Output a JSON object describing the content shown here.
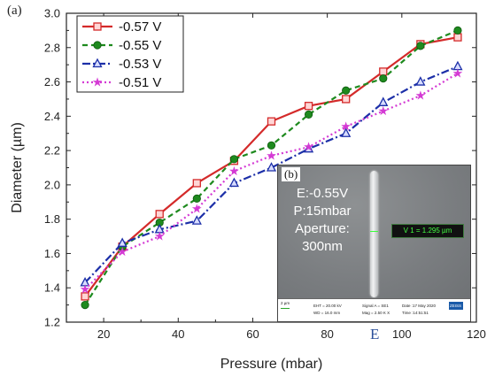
{
  "panel_a_label": "(a)",
  "panel_b_label": "(b)",
  "bottom_mark": "E",
  "chart_data": {
    "type": "line",
    "title": "",
    "xlabel": "Pressure (mbar)",
    "ylabel": "Diameter (µm)",
    "xlim": [
      10,
      120
    ],
    "ylim": [
      1.2,
      3.0
    ],
    "x_ticks": [
      "20",
      "40",
      "60",
      "80",
      "100",
      "120"
    ],
    "y_ticks": [
      "1.2",
      "1.4",
      "1.6",
      "1.8",
      "2.0",
      "2.2",
      "2.4",
      "2.6",
      "2.8",
      "3.0"
    ],
    "x": [
      15,
      25,
      35,
      45,
      55,
      65,
      75,
      85,
      95,
      105,
      115
    ],
    "legend_position": "top-left",
    "grid": false,
    "series": [
      {
        "name": "-0.57 V",
        "color": "#d42a2a",
        "dash": "solid",
        "marker": "square",
        "values": [
          1.35,
          1.64,
          1.83,
          2.01,
          2.14,
          2.37,
          2.46,
          2.5,
          2.66,
          2.82,
          2.86
        ]
      },
      {
        "name": "-0.55 V",
        "color": "#1e8a1e",
        "dash": "dashed",
        "marker": "circle",
        "values": [
          1.3,
          1.64,
          1.78,
          1.92,
          2.15,
          2.23,
          2.41,
          2.55,
          2.62,
          2.81,
          2.9
        ]
      },
      {
        "name": "-0.53 V",
        "color": "#1c2fa8",
        "dash": "dashdot",
        "marker": "triangle",
        "values": [
          1.43,
          1.66,
          1.74,
          1.79,
          2.01,
          2.1,
          2.21,
          2.3,
          2.48,
          2.6,
          2.69
        ]
      },
      {
        "name": "-0.51 V",
        "color": "#d43ad4",
        "dash": "dotted",
        "marker": "star",
        "values": [
          1.39,
          1.61,
          1.7,
          1.86,
          2.08,
          2.17,
          2.22,
          2.34,
          2.43,
          2.52,
          2.65
        ]
      }
    ]
  },
  "inset": {
    "lines": [
      "E:-0.55V",
      "P:15mbar",
      "Aperture:",
      "300nm"
    ],
    "measurement": "V 1 = 1.295 µm",
    "scale_label": "2 µm",
    "info_left": [
      "EHT = 20.00 kV",
      "WD = 16.0 mm"
    ],
    "info_mid": [
      "Signal A = SE1",
      "Mag = 2.50 K X"
    ],
    "info_right": [
      "Date :17 May 2020",
      "Time :14:51:51"
    ],
    "logo_text": "ZEISS"
  }
}
